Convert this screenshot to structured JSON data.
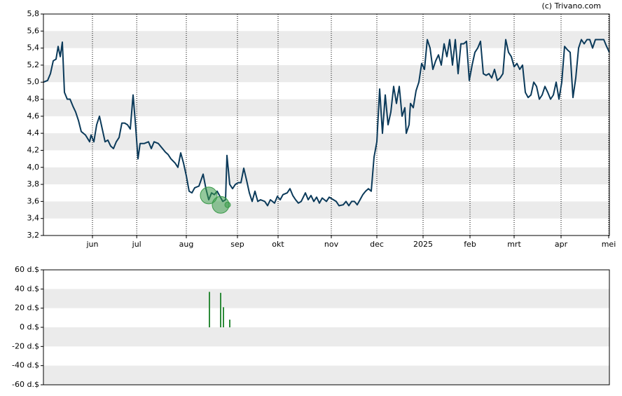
{
  "copyright": "(c) Trivano.com",
  "chart_data": [
    {
      "type": "line",
      "color": "#0b3a5a",
      "xlim": [
        0,
        202
      ],
      "xticks": [
        {
          "value": 17.5,
          "label": "jun"
        },
        {
          "value": 33.3,
          "label": "jul"
        },
        {
          "value": 51,
          "label": "aug"
        },
        {
          "value": 69.25,
          "label": "sep"
        },
        {
          "value": 83.75,
          "label": "okt"
        },
        {
          "value": 102.75,
          "label": "nov"
        },
        {
          "value": 119,
          "label": "dec"
        },
        {
          "value": 135.5,
          "label": "2025"
        },
        {
          "value": 152.25,
          "label": "feb"
        },
        {
          "value": 168,
          "label": "mrt"
        },
        {
          "value": 184.75,
          "label": "apr"
        },
        {
          "value": 201.75,
          "label": "mei"
        }
      ],
      "ylim": [
        3.2,
        5.8
      ],
      "yticks": [
        {
          "value": 3.2,
          "label": "3,2"
        },
        {
          "value": 3.4,
          "label": "3,4"
        },
        {
          "value": 3.6,
          "label": "3,6"
        },
        {
          "value": 3.8,
          "label": "3,8"
        },
        {
          "value": 4.0,
          "label": "4,0"
        },
        {
          "value": 4.2,
          "label": "4,2"
        },
        {
          "value": 4.4,
          "label": "4,4"
        },
        {
          "value": 4.6,
          "label": "4,6"
        },
        {
          "value": 4.8,
          "label": "4,8"
        },
        {
          "value": 5.0,
          "label": "5,0"
        },
        {
          "value": 5.2,
          "label": "5,2"
        },
        {
          "value": 5.4,
          "label": "5,4"
        },
        {
          "value": 5.6,
          "label": "5,6"
        },
        {
          "value": 5.8,
          "label": "5,8"
        }
      ],
      "x": [
        0,
        1.5,
        2.5,
        3.5,
        4.5,
        5.25,
        6,
        6.75,
        7.5,
        8.5,
        9.5,
        10.5,
        11.5,
        12.5,
        13.5,
        15,
        16.5,
        17,
        18,
        19,
        20,
        21,
        22,
        23,
        24,
        25,
        26,
        27,
        28,
        29,
        30,
        31,
        32,
        32.75,
        33.75,
        34.5,
        36,
        37.5,
        38.5,
        39.5,
        41,
        42.5,
        43.5,
        44.5,
        45.5,
        47,
        48,
        49,
        50,
        51,
        52,
        53,
        54,
        55.5,
        57,
        58,
        59,
        60,
        61,
        62,
        63,
        64,
        65,
        65.5,
        66.5,
        67.5,
        68.5,
        69.5,
        70.5,
        71.5,
        72.5,
        73.5,
        74.5,
        75.5,
        76.5,
        77.5,
        79,
        80,
        81,
        82.5,
        83.5,
        84.5,
        85.5,
        87,
        88,
        89,
        90,
        91,
        92,
        93.5,
        94.5,
        95.5,
        96.5,
        97.5,
        98.5,
        99.5,
        101,
        102,
        103.5,
        104.5,
        105.5,
        107,
        108,
        109,
        110,
        111,
        112,
        113,
        114,
        115,
        116,
        117,
        118,
        119,
        120,
        121,
        122,
        123,
        124,
        125,
        126,
        127,
        128,
        129,
        129.5,
        130.5,
        131,
        132,
        133,
        134,
        135,
        136,
        137,
        138,
        139,
        140,
        141,
        142,
        143,
        144,
        145,
        146,
        147,
        148,
        149,
        150,
        151,
        152,
        153,
        154,
        155,
        156,
        157,
        158,
        159,
        160,
        161,
        162,
        163,
        164,
        165,
        166,
        167,
        168,
        169,
        170,
        171,
        172,
        173,
        174,
        175,
        176,
        177,
        178,
        179,
        180,
        181,
        182,
        183,
        184,
        185,
        186,
        187,
        188,
        189,
        190,
        191,
        192,
        193,
        194,
        195,
        196,
        197,
        199,
        200,
        201,
        202
      ],
      "values": [
        5.0,
        5.02,
        5.1,
        5.25,
        5.27,
        5.42,
        5.3,
        5.47,
        4.88,
        4.8,
        4.8,
        4.72,
        4.65,
        4.55,
        4.42,
        4.38,
        4.3,
        4.38,
        4.3,
        4.5,
        4.6,
        4.45,
        4.3,
        4.32,
        4.25,
        4.22,
        4.3,
        4.35,
        4.52,
        4.52,
        4.5,
        4.45,
        4.85,
        4.55,
        4.1,
        4.28,
        4.28,
        4.3,
        4.22,
        4.3,
        4.28,
        4.22,
        4.18,
        4.15,
        4.1,
        4.05,
        4.0,
        4.17,
        4.05,
        3.9,
        3.72,
        3.7,
        3.76,
        3.78,
        3.92,
        3.75,
        3.62,
        3.7,
        3.68,
        3.72,
        3.66,
        3.6,
        3.62,
        4.14,
        3.8,
        3.75,
        3.8,
        3.82,
        3.82,
        3.99,
        3.85,
        3.7,
        3.6,
        3.72,
        3.6,
        3.62,
        3.6,
        3.55,
        3.62,
        3.58,
        3.66,
        3.62,
        3.68,
        3.7,
        3.75,
        3.67,
        3.62,
        3.58,
        3.6,
        3.7,
        3.62,
        3.67,
        3.6,
        3.65,
        3.58,
        3.64,
        3.6,
        3.65,
        3.62,
        3.6,
        3.55,
        3.56,
        3.6,
        3.55,
        3.6,
        3.6,
        3.56,
        3.62,
        3.68,
        3.72,
        3.75,
        3.72,
        4.12,
        4.3,
        4.92,
        4.4,
        4.85,
        4.5,
        4.65,
        4.95,
        4.75,
        4.95,
        4.6,
        4.7,
        4.4,
        4.5,
        4.75,
        4.7,
        4.9,
        5.0,
        5.22,
        5.15,
        5.5,
        5.4,
        5.15,
        5.25,
        5.32,
        5.2,
        5.45,
        5.3,
        5.5,
        5.2,
        5.5,
        5.1,
        5.45,
        5.45,
        5.48,
        5.02,
        5.2,
        5.35,
        5.4,
        5.48,
        5.1,
        5.08,
        5.1,
        5.05,
        5.15,
        5.02,
        5.05,
        5.1,
        5.5,
        5.35,
        5.3,
        5.18,
        5.22,
        5.15,
        5.2,
        4.88,
        4.82,
        4.85,
        5.0,
        4.95,
        4.8,
        4.85,
        4.95,
        4.88,
        4.8,
        4.85,
        5.0,
        4.8,
        5.0,
        5.42,
        5.38,
        5.35,
        4.82,
        5.05,
        5.4,
        5.5,
        5.45,
        5.5,
        5.5,
        5.4,
        5.5,
        5.5,
        5.5,
        5.42,
        5.35
      ],
      "events": {
        "color": "#3a9a4a",
        "x": [
          59,
          63.25,
          65.75
        ],
        "values": [
          3.67,
          3.56,
          3.56
        ],
        "sizes": [
          12,
          12,
          4
        ]
      }
    },
    {
      "type": "bar",
      "color": "#2e8b3a",
      "xlim": [
        0,
        202
      ],
      "ylim": [
        -60,
        60
      ],
      "yticks": [
        {
          "value": -60,
          "label": "-60 d.$"
        },
        {
          "value": -40,
          "label": "-40 d.$"
        },
        {
          "value": -20,
          "label": "-20 d.$"
        },
        {
          "value": 0,
          "label": "0 d.$"
        },
        {
          "value": 20,
          "label": "20 d.$"
        },
        {
          "value": 40,
          "label": "40 d.$"
        },
        {
          "value": 60,
          "label": "60 d.$"
        }
      ],
      "x": [
        59.25,
        63.25,
        64.25,
        66.5
      ],
      "values": [
        37,
        36,
        21,
        8
      ]
    }
  ]
}
